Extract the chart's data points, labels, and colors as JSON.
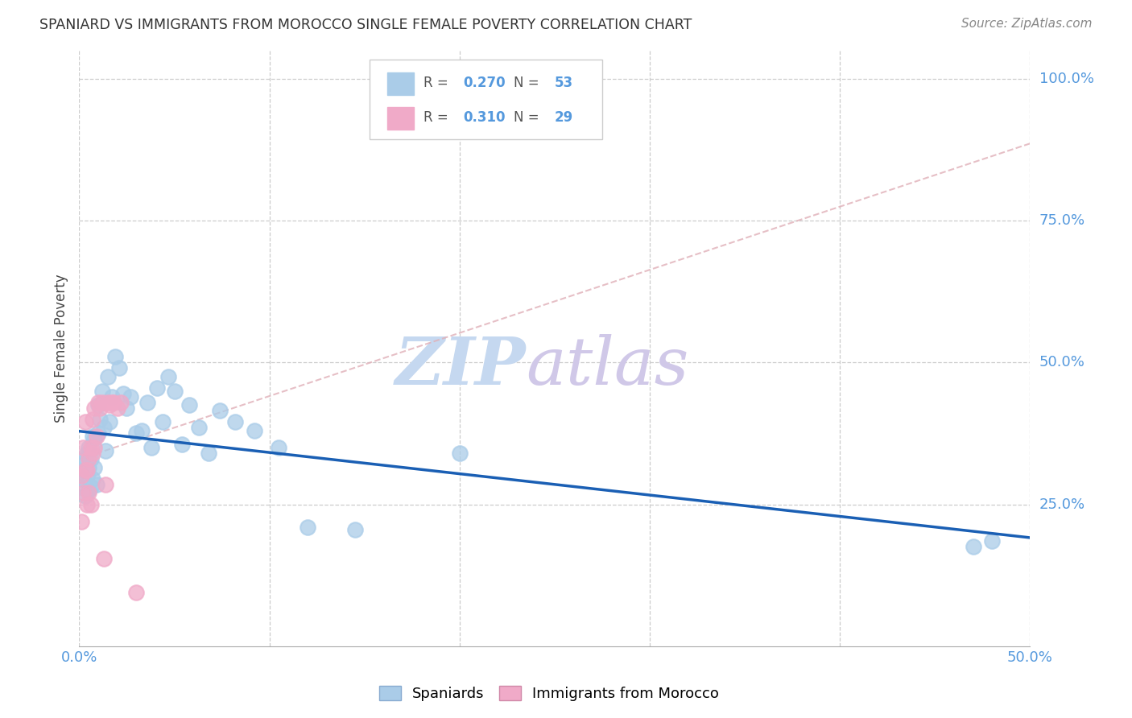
{
  "title": "SPANIARD VS IMMIGRANTS FROM MOROCCO SINGLE FEMALE POVERTY CORRELATION CHART",
  "source": "Source: ZipAtlas.com",
  "ylabel": "Single Female Poverty",
  "spaniards_R": 0.27,
  "spaniards_N": 53,
  "morocco_R": 0.31,
  "morocco_N": 29,
  "spaniards_color": "#aacce8",
  "morocco_color": "#f0aac8",
  "trendline_spaniards_color": "#1a5fb4",
  "trendline_morocco_color": "#e0b0b8",
  "spaniards_x": [
    0.001,
    0.001,
    0.002,
    0.002,
    0.003,
    0.003,
    0.004,
    0.004,
    0.005,
    0.005,
    0.005,
    0.006,
    0.006,
    0.007,
    0.007,
    0.008,
    0.008,
    0.009,
    0.01,
    0.01,
    0.011,
    0.012,
    0.013,
    0.014,
    0.015,
    0.016,
    0.017,
    0.019,
    0.021,
    0.023,
    0.025,
    0.027,
    0.03,
    0.033,
    0.036,
    0.038,
    0.041,
    0.044,
    0.047,
    0.05,
    0.054,
    0.058,
    0.063,
    0.068,
    0.074,
    0.082,
    0.092,
    0.105,
    0.12,
    0.145,
    0.2,
    0.47,
    0.48
  ],
  "spaniards_y": [
    0.32,
    0.28,
    0.31,
    0.295,
    0.33,
    0.265,
    0.3,
    0.34,
    0.275,
    0.315,
    0.35,
    0.28,
    0.33,
    0.37,
    0.295,
    0.315,
    0.365,
    0.285,
    0.425,
    0.375,
    0.4,
    0.45,
    0.385,
    0.345,
    0.475,
    0.395,
    0.44,
    0.51,
    0.49,
    0.445,
    0.42,
    0.44,
    0.375,
    0.38,
    0.43,
    0.35,
    0.455,
    0.395,
    0.475,
    0.45,
    0.355,
    0.425,
    0.385,
    0.34,
    0.415,
    0.395,
    0.38,
    0.35,
    0.21,
    0.205,
    0.34,
    0.175,
    0.185
  ],
  "morocco_x": [
    0.001,
    0.001,
    0.002,
    0.002,
    0.003,
    0.003,
    0.004,
    0.004,
    0.005,
    0.005,
    0.006,
    0.006,
    0.007,
    0.007,
    0.008,
    0.008,
    0.009,
    0.01,
    0.011,
    0.012,
    0.013,
    0.014,
    0.015,
    0.016,
    0.017,
    0.018,
    0.02,
    0.022,
    0.03
  ],
  "morocco_y": [
    0.22,
    0.3,
    0.27,
    0.35,
    0.31,
    0.395,
    0.25,
    0.31,
    0.27,
    0.33,
    0.25,
    0.35,
    0.34,
    0.4,
    0.35,
    0.42,
    0.37,
    0.43,
    0.42,
    0.43,
    0.155,
    0.285,
    0.43,
    0.425,
    0.43,
    0.43,
    0.42,
    0.43,
    0.095
  ],
  "xlim": [
    0.0,
    0.5
  ],
  "ylim": [
    0.0,
    1.05
  ],
  "yticks": [
    0.25,
    0.5,
    0.75,
    1.0
  ],
  "ytick_labels": [
    "25.0%",
    "50.0%",
    "75.0%",
    "100.0%"
  ],
  "xtick_label_left": "0.0%",
  "xtick_label_right": "50.0%",
  "tick_color": "#5599dd",
  "watermark": "ZIPatlas",
  "watermark_color": "#d0e4f5"
}
